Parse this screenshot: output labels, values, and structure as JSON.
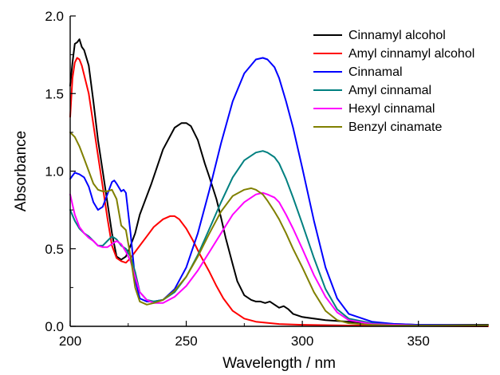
{
  "chart_data": {
    "type": "line",
    "title": "",
    "xlabel": "Wavelength / nm",
    "ylabel": "Absorbance",
    "xlim": [
      200,
      380
    ],
    "ylim": [
      0,
      2.0
    ],
    "xticks": [
      "200",
      "250",
      "300",
      "350"
    ],
    "yticks": [
      "0.0",
      "0.5",
      "1.0",
      "1.5",
      "2.0"
    ],
    "grid": false,
    "legend_position": "top-right",
    "series": [
      {
        "name": "Cinnamyl alcohol",
        "color": "#000000",
        "x": [
          200,
          201,
          202,
          203,
          204,
          205,
          206,
          208,
          210,
          212,
          214,
          216,
          218,
          220,
          222,
          224,
          226,
          228,
          230,
          235,
          240,
          245,
          248,
          250,
          252,
          255,
          258,
          260,
          263,
          265,
          267,
          270,
          272,
          275,
          278,
          280,
          282,
          284,
          286,
          288,
          290,
          292,
          294,
          296,
          300,
          310,
          320,
          330,
          350,
          380
        ],
        "y": [
          1.55,
          1.7,
          1.82,
          1.83,
          1.85,
          1.8,
          1.78,
          1.68,
          1.45,
          1.2,
          1.0,
          0.8,
          0.6,
          0.45,
          0.43,
          0.45,
          0.52,
          0.6,
          0.72,
          0.92,
          1.14,
          1.28,
          1.31,
          1.31,
          1.29,
          1.2,
          1.05,
          0.96,
          0.82,
          0.7,
          0.57,
          0.4,
          0.29,
          0.2,
          0.17,
          0.16,
          0.16,
          0.15,
          0.16,
          0.14,
          0.12,
          0.13,
          0.11,
          0.08,
          0.06,
          0.04,
          0.03,
          0.02,
          0.01,
          0.01
        ]
      },
      {
        "name": "Amyl cinnamyl alcohol",
        "color": "#ff0000",
        "x": [
          200,
          201,
          202,
          203,
          204,
          205,
          206,
          208,
          210,
          212,
          214,
          216,
          218,
          220,
          222,
          224,
          226,
          228,
          230,
          233,
          236,
          240,
          243,
          245,
          247,
          250,
          253,
          256,
          260,
          263,
          266,
          270,
          275,
          280,
          290,
          300,
          320,
          380
        ],
        "y": [
          1.35,
          1.6,
          1.7,
          1.73,
          1.72,
          1.68,
          1.62,
          1.5,
          1.3,
          1.1,
          0.9,
          0.7,
          0.52,
          0.44,
          0.42,
          0.41,
          0.44,
          0.48,
          0.52,
          0.58,
          0.64,
          0.69,
          0.71,
          0.71,
          0.69,
          0.63,
          0.55,
          0.46,
          0.35,
          0.26,
          0.18,
          0.1,
          0.05,
          0.03,
          0.015,
          0.01,
          0.005,
          0.0
        ]
      },
      {
        "name": "Cinnamal",
        "color": "#0000ff",
        "x": [
          200,
          202,
          204,
          206,
          208,
          210,
          212,
          214,
          216,
          218,
          219,
          220,
          222,
          223,
          224,
          226,
          228,
          230,
          233,
          236,
          240,
          245,
          250,
          255,
          260,
          265,
          270,
          275,
          280,
          283,
          285,
          288,
          290,
          293,
          296,
          300,
          305,
          310,
          315,
          320,
          330,
          340,
          350,
          380
        ],
        "y": [
          0.95,
          0.99,
          0.98,
          0.96,
          0.9,
          0.8,
          0.75,
          0.77,
          0.85,
          0.93,
          0.94,
          0.92,
          0.87,
          0.88,
          0.86,
          0.6,
          0.3,
          0.18,
          0.16,
          0.16,
          0.17,
          0.24,
          0.38,
          0.6,
          0.88,
          1.18,
          1.45,
          1.63,
          1.72,
          1.73,
          1.72,
          1.67,
          1.6,
          1.45,
          1.28,
          1.02,
          0.68,
          0.38,
          0.18,
          0.08,
          0.03,
          0.015,
          0.01,
          0.005
        ]
      },
      {
        "name": "Amyl cinnamal",
        "color": "#008080",
        "x": [
          200,
          202,
          204,
          206,
          208,
          210,
          212,
          214,
          216,
          218,
          219,
          220,
          222,
          224,
          226,
          228,
          230,
          233,
          236,
          240,
          245,
          250,
          255,
          260,
          265,
          270,
          275,
          280,
          283,
          285,
          288,
          290,
          293,
          296,
          300,
          305,
          310,
          315,
          320,
          330,
          340,
          350,
          380
        ],
        "y": [
          0.75,
          0.68,
          0.63,
          0.6,
          0.58,
          0.55,
          0.52,
          0.52,
          0.55,
          0.58,
          0.57,
          0.56,
          0.52,
          0.5,
          0.45,
          0.35,
          0.22,
          0.17,
          0.16,
          0.17,
          0.22,
          0.32,
          0.46,
          0.63,
          0.8,
          0.96,
          1.07,
          1.12,
          1.13,
          1.12,
          1.09,
          1.05,
          0.95,
          0.83,
          0.66,
          0.44,
          0.24,
          0.11,
          0.05,
          0.02,
          0.01,
          0.005,
          0.005
        ]
      },
      {
        "name": "Hexyl cinnamal",
        "color": "#ff00ff",
        "x": [
          200,
          202,
          204,
          206,
          208,
          210,
          212,
          214,
          216,
          218,
          220,
          222,
          224,
          226,
          228,
          230,
          233,
          236,
          240,
          245,
          250,
          255,
          260,
          265,
          270,
          275,
          280,
          283,
          285,
          288,
          290,
          293,
          296,
          300,
          305,
          310,
          315,
          320,
          330,
          340,
          350,
          380
        ],
        "y": [
          0.85,
          0.72,
          0.64,
          0.6,
          0.57,
          0.55,
          0.52,
          0.51,
          0.51,
          0.53,
          0.55,
          0.53,
          0.48,
          0.42,
          0.32,
          0.22,
          0.17,
          0.15,
          0.15,
          0.19,
          0.26,
          0.36,
          0.48,
          0.6,
          0.72,
          0.8,
          0.85,
          0.86,
          0.85,
          0.83,
          0.8,
          0.72,
          0.63,
          0.5,
          0.33,
          0.19,
          0.09,
          0.04,
          0.015,
          0.01,
          0.005,
          0.005
        ]
      },
      {
        "name": "Benzyl cinamate",
        "color": "#808000",
        "x": [
          200,
          202,
          204,
          206,
          208,
          210,
          212,
          214,
          216,
          218,
          220,
          222,
          224,
          226,
          228,
          230,
          233,
          236,
          240,
          245,
          250,
          255,
          260,
          265,
          270,
          275,
          278,
          280,
          283,
          285,
          288,
          290,
          293,
          296,
          300,
          305,
          310,
          315,
          320,
          330,
          340,
          350,
          380
        ],
        "y": [
          1.25,
          1.22,
          1.16,
          1.08,
          1.0,
          0.92,
          0.88,
          0.87,
          0.87,
          0.88,
          0.82,
          0.65,
          0.62,
          0.45,
          0.25,
          0.16,
          0.14,
          0.15,
          0.17,
          0.23,
          0.32,
          0.45,
          0.6,
          0.74,
          0.84,
          0.88,
          0.89,
          0.88,
          0.85,
          0.81,
          0.74,
          0.69,
          0.6,
          0.5,
          0.38,
          0.22,
          0.1,
          0.04,
          0.02,
          0.01,
          0.005,
          0.005,
          0.005
        ]
      }
    ]
  }
}
